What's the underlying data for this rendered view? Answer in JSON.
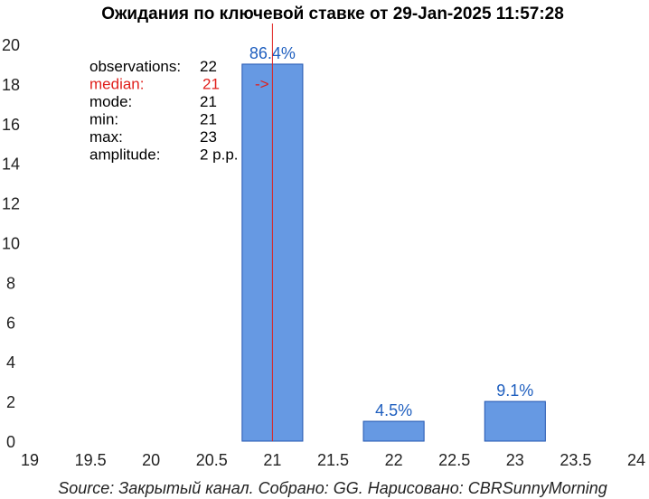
{
  "chart_data": {
    "type": "bar",
    "title": "Ожидания по ключевой ставке от 29-Jan-2025 11:57:28",
    "xlabel": "",
    "ylabel": "",
    "xlim": [
      19,
      24
    ],
    "ylim": [
      0,
      20
    ],
    "x_ticks": [
      "19",
      "19.5",
      "20",
      "20.5",
      "21",
      "21.5",
      "22",
      "22.5",
      "23",
      "23.5",
      "24"
    ],
    "y_ticks": [
      "0",
      "2",
      "4",
      "6",
      "8",
      "10",
      "12",
      "14",
      "16",
      "18",
      "20"
    ],
    "bar_width": 0.5,
    "bars": [
      {
        "x": 21,
        "value": 19,
        "label": "86.4%"
      },
      {
        "x": 22,
        "value": 1,
        "label": "4.5%"
      },
      {
        "x": 23,
        "value": 2,
        "label": "9.1%"
      }
    ],
    "median_line_x": 21,
    "bar_color": "#6699e3",
    "median_color": "#e0201c",
    "grid": false
  },
  "stats": [
    {
      "key": "observations:",
      "value": "22",
      "highlight": false
    },
    {
      "key": "median:",
      "value": "21",
      "arrow": "->",
      "highlight": true
    },
    {
      "key": "mode:",
      "value": "21",
      "highlight": false
    },
    {
      "key": "min:",
      "value": "21",
      "highlight": false
    },
    {
      "key": "max:",
      "value": "23",
      "highlight": false
    },
    {
      "key": "amplitude:",
      "value": "2 p.p.",
      "highlight": false
    }
  ],
  "source": "Source: Закрытый канал. Собрано: GG. Нарисовано: CBRSunnyMorning"
}
